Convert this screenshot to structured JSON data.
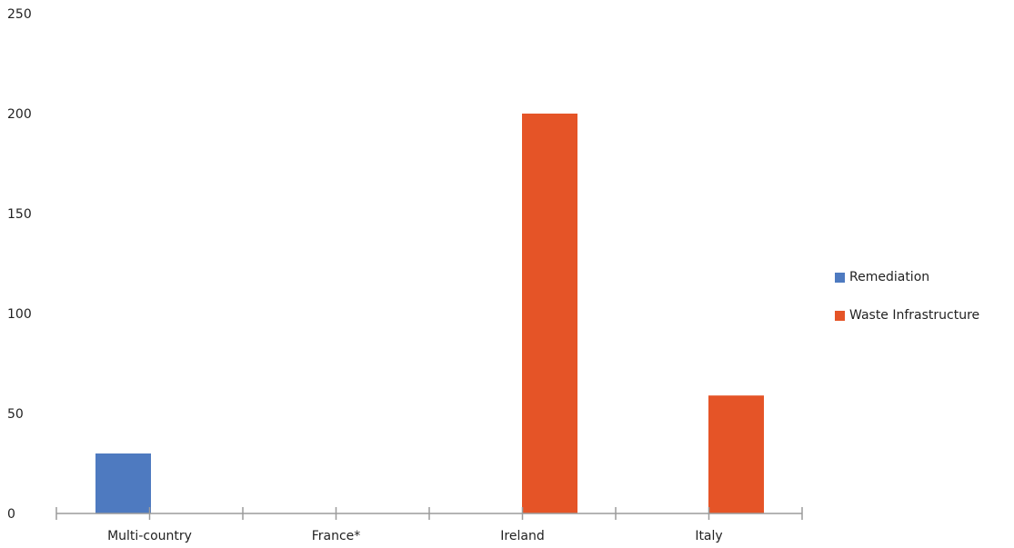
{
  "chart_data": {
    "type": "bar",
    "categories": [
      "Multi-country",
      "France*",
      "Ireland",
      "Italy"
    ],
    "series": [
      {
        "name": "Remediation",
        "color": "#4E7AC0",
        "values": [
          30,
          0,
          0,
          0
        ]
      },
      {
        "name": "Waste Infrastructure",
        "color": "#E55427",
        "values": [
          0,
          0,
          200,
          59
        ]
      }
    ],
    "ylim": [
      0,
      250
    ],
    "yticks": [
      "0",
      "50",
      "100",
      "150",
      "200",
      "250"
    ],
    "grid": false,
    "legend_position": "right"
  }
}
